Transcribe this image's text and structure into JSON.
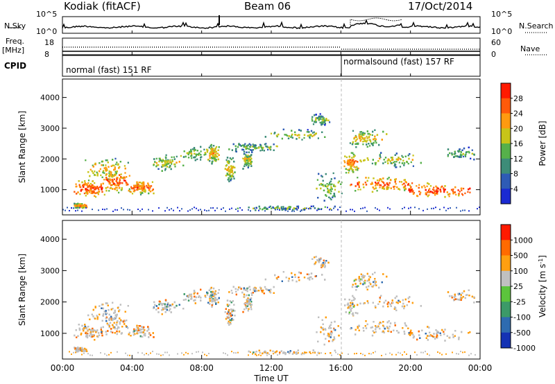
{
  "header": {
    "radar": "Kodiak (fitACF)",
    "beam": "Beam 06",
    "date": "17/Oct/2014"
  },
  "top_panels": {
    "nsky_label": "N.Sky",
    "nsearch_label": "N.Search",
    "freq_label": "Freq.",
    "freq_unit": "[MHz]",
    "nave_label": "Nave",
    "cpid_label": "CPID",
    "noise_left_ticks": [
      "10^5",
      "10^0"
    ],
    "noise_right_ticks": [
      "10^5",
      "10^0"
    ],
    "freq_ticks": [
      "18",
      "8"
    ],
    "nave_ticks": [
      "60",
      "0"
    ],
    "cpid_segments": [
      "normal (fast) 151 RF",
      "normalsound (fast) 157 RF"
    ]
  },
  "chart_data": [
    {
      "type": "heatmap",
      "ylabel": "Slant Range [km]",
      "xlabel": "",
      "xlim": [
        0,
        24
      ],
      "ylim": [
        180,
        4600
      ],
      "yticks": [
        "1000",
        "2000",
        "3000",
        "4000"
      ],
      "colorbar_label": "Power [dB]",
      "colorbar_ticks": [
        "4",
        "8",
        "12",
        "16",
        "20",
        "24",
        "28"
      ],
      "colors": [
        "#1a2ad2",
        "#2e5bb5",
        "#3d8c78",
        "#56b04a",
        "#c8c419",
        "#ff9a10",
        "#ff5a0a",
        "#ff1a00"
      ]
    },
    {
      "type": "heatmap",
      "ylabel": "Slant Range [km]",
      "xlabel": "Time UT",
      "xlim": [
        0,
        24
      ],
      "ylim": [
        180,
        4600
      ],
      "yticks": [
        "1000",
        "2000",
        "3000",
        "4000"
      ],
      "xticks": [
        "00:00",
        "04:00",
        "08:00",
        "12:00",
        "16:00",
        "20:00",
        "00:00"
      ],
      "colorbar_label": "Velocity [m s",
      "colorbar_label_sup": "-1",
      "colorbar_label_end": "]",
      "colorbar_ticks": [
        "1000",
        "500",
        "100",
        "25",
        "-25",
        "-100",
        "-500",
        "-1000"
      ],
      "colors": [
        "#1432b4",
        "#2e6bb0",
        "#3c9a68",
        "#5cc43c",
        "#c0c0c0",
        "#ff9f10",
        "#ff6a00",
        "#ff1a00"
      ]
    }
  ]
}
